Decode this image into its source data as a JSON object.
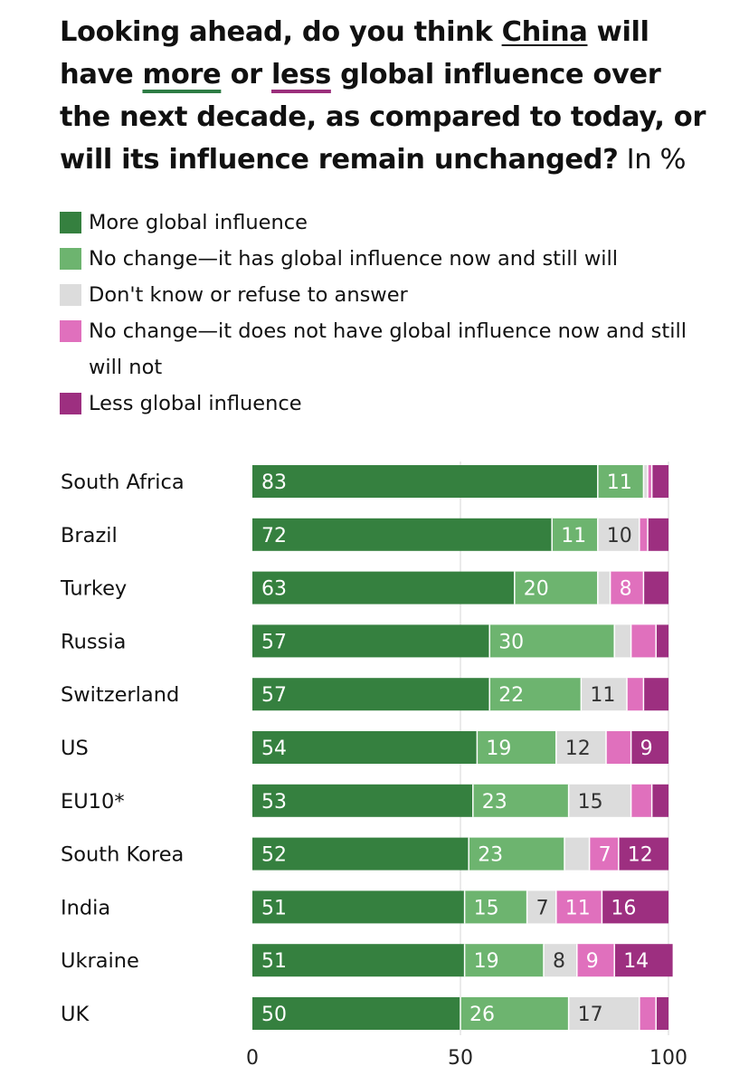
{
  "title": {
    "part1": "Looking ahead, do you think ",
    "china": "China",
    "part2": " will have ",
    "more": "more",
    "or": " or ",
    "less": "less",
    "part3": " global influence over the next decade, as compared to today, or will its influence remain unchanged?",
    "unit": " In %"
  },
  "legend": [
    {
      "label": "More global influence",
      "color": "#35803f"
    },
    {
      "label": "No change—it has global influence now and still will",
      "color": "#6db46f"
    },
    {
      "label": "Don't know or refuse to answer",
      "color": "#dcdcdc"
    },
    {
      "label": "No change—it does not have global influence now and still will not",
      "color": "#e070bd"
    },
    {
      "label": "Less global influence",
      "color": "#9d2f80"
    }
  ],
  "chart_data": {
    "type": "bar",
    "orientation": "horizontal",
    "stacked": true,
    "unit": "%",
    "xlim": [
      0,
      100
    ],
    "x_ticks": [
      0,
      50,
      100
    ],
    "series_names": [
      "More global influence",
      "No change—it has global influence now and still will",
      "Don't know or refuse to answer",
      "No change—it does not have global influence now and still will not",
      "Less global influence"
    ],
    "series_colors": [
      "#35803f",
      "#6db46f",
      "#dcdcdc",
      "#e070bd",
      "#9d2f80"
    ],
    "label_colors": [
      "#ffffff",
      "#ffffff",
      "#333333",
      "#ffffff",
      "#ffffff"
    ],
    "rows": [
      {
        "country": "South Africa",
        "values": [
          83,
          11,
          1,
          1,
          4
        ],
        "labels": [
          "83",
          "11",
          "",
          "",
          ""
        ]
      },
      {
        "country": "Brazil",
        "values": [
          72,
          11,
          10,
          2,
          5
        ],
        "labels": [
          "72",
          "11",
          "10",
          "",
          ""
        ]
      },
      {
        "country": "Turkey",
        "values": [
          63,
          20,
          3,
          8,
          6
        ],
        "labels": [
          "63",
          "20",
          "",
          "8",
          ""
        ]
      },
      {
        "country": "Russia",
        "values": [
          57,
          30,
          4,
          6,
          3
        ],
        "labels": [
          "57",
          "30",
          "",
          "",
          ""
        ]
      },
      {
        "country": "Switzerland",
        "values": [
          57,
          22,
          11,
          4,
          6
        ],
        "labels": [
          "57",
          "22",
          "11",
          "",
          ""
        ]
      },
      {
        "country": "US",
        "values": [
          54,
          19,
          12,
          6,
          9
        ],
        "labels": [
          "54",
          "19",
          "12",
          "",
          "9"
        ]
      },
      {
        "country": "EU10*",
        "values": [
          53,
          23,
          15,
          5,
          4
        ],
        "labels": [
          "53",
          "23",
          "15",
          "",
          ""
        ]
      },
      {
        "country": "South Korea",
        "values": [
          52,
          23,
          6,
          7,
          12
        ],
        "labels": [
          "52",
          "23",
          "",
          "7",
          "12"
        ]
      },
      {
        "country": "India",
        "values": [
          51,
          15,
          7,
          11,
          16
        ],
        "labels": [
          "51",
          "15",
          "7",
          "11",
          "16"
        ]
      },
      {
        "country": "Ukraine",
        "values": [
          51,
          19,
          8,
          9,
          14
        ],
        "labels": [
          "51",
          "19",
          "8",
          "9",
          "14"
        ]
      },
      {
        "country": "UK",
        "values": [
          50,
          26,
          17,
          4,
          3
        ],
        "labels": [
          "50",
          "26",
          "17",
          "",
          ""
        ]
      }
    ]
  }
}
